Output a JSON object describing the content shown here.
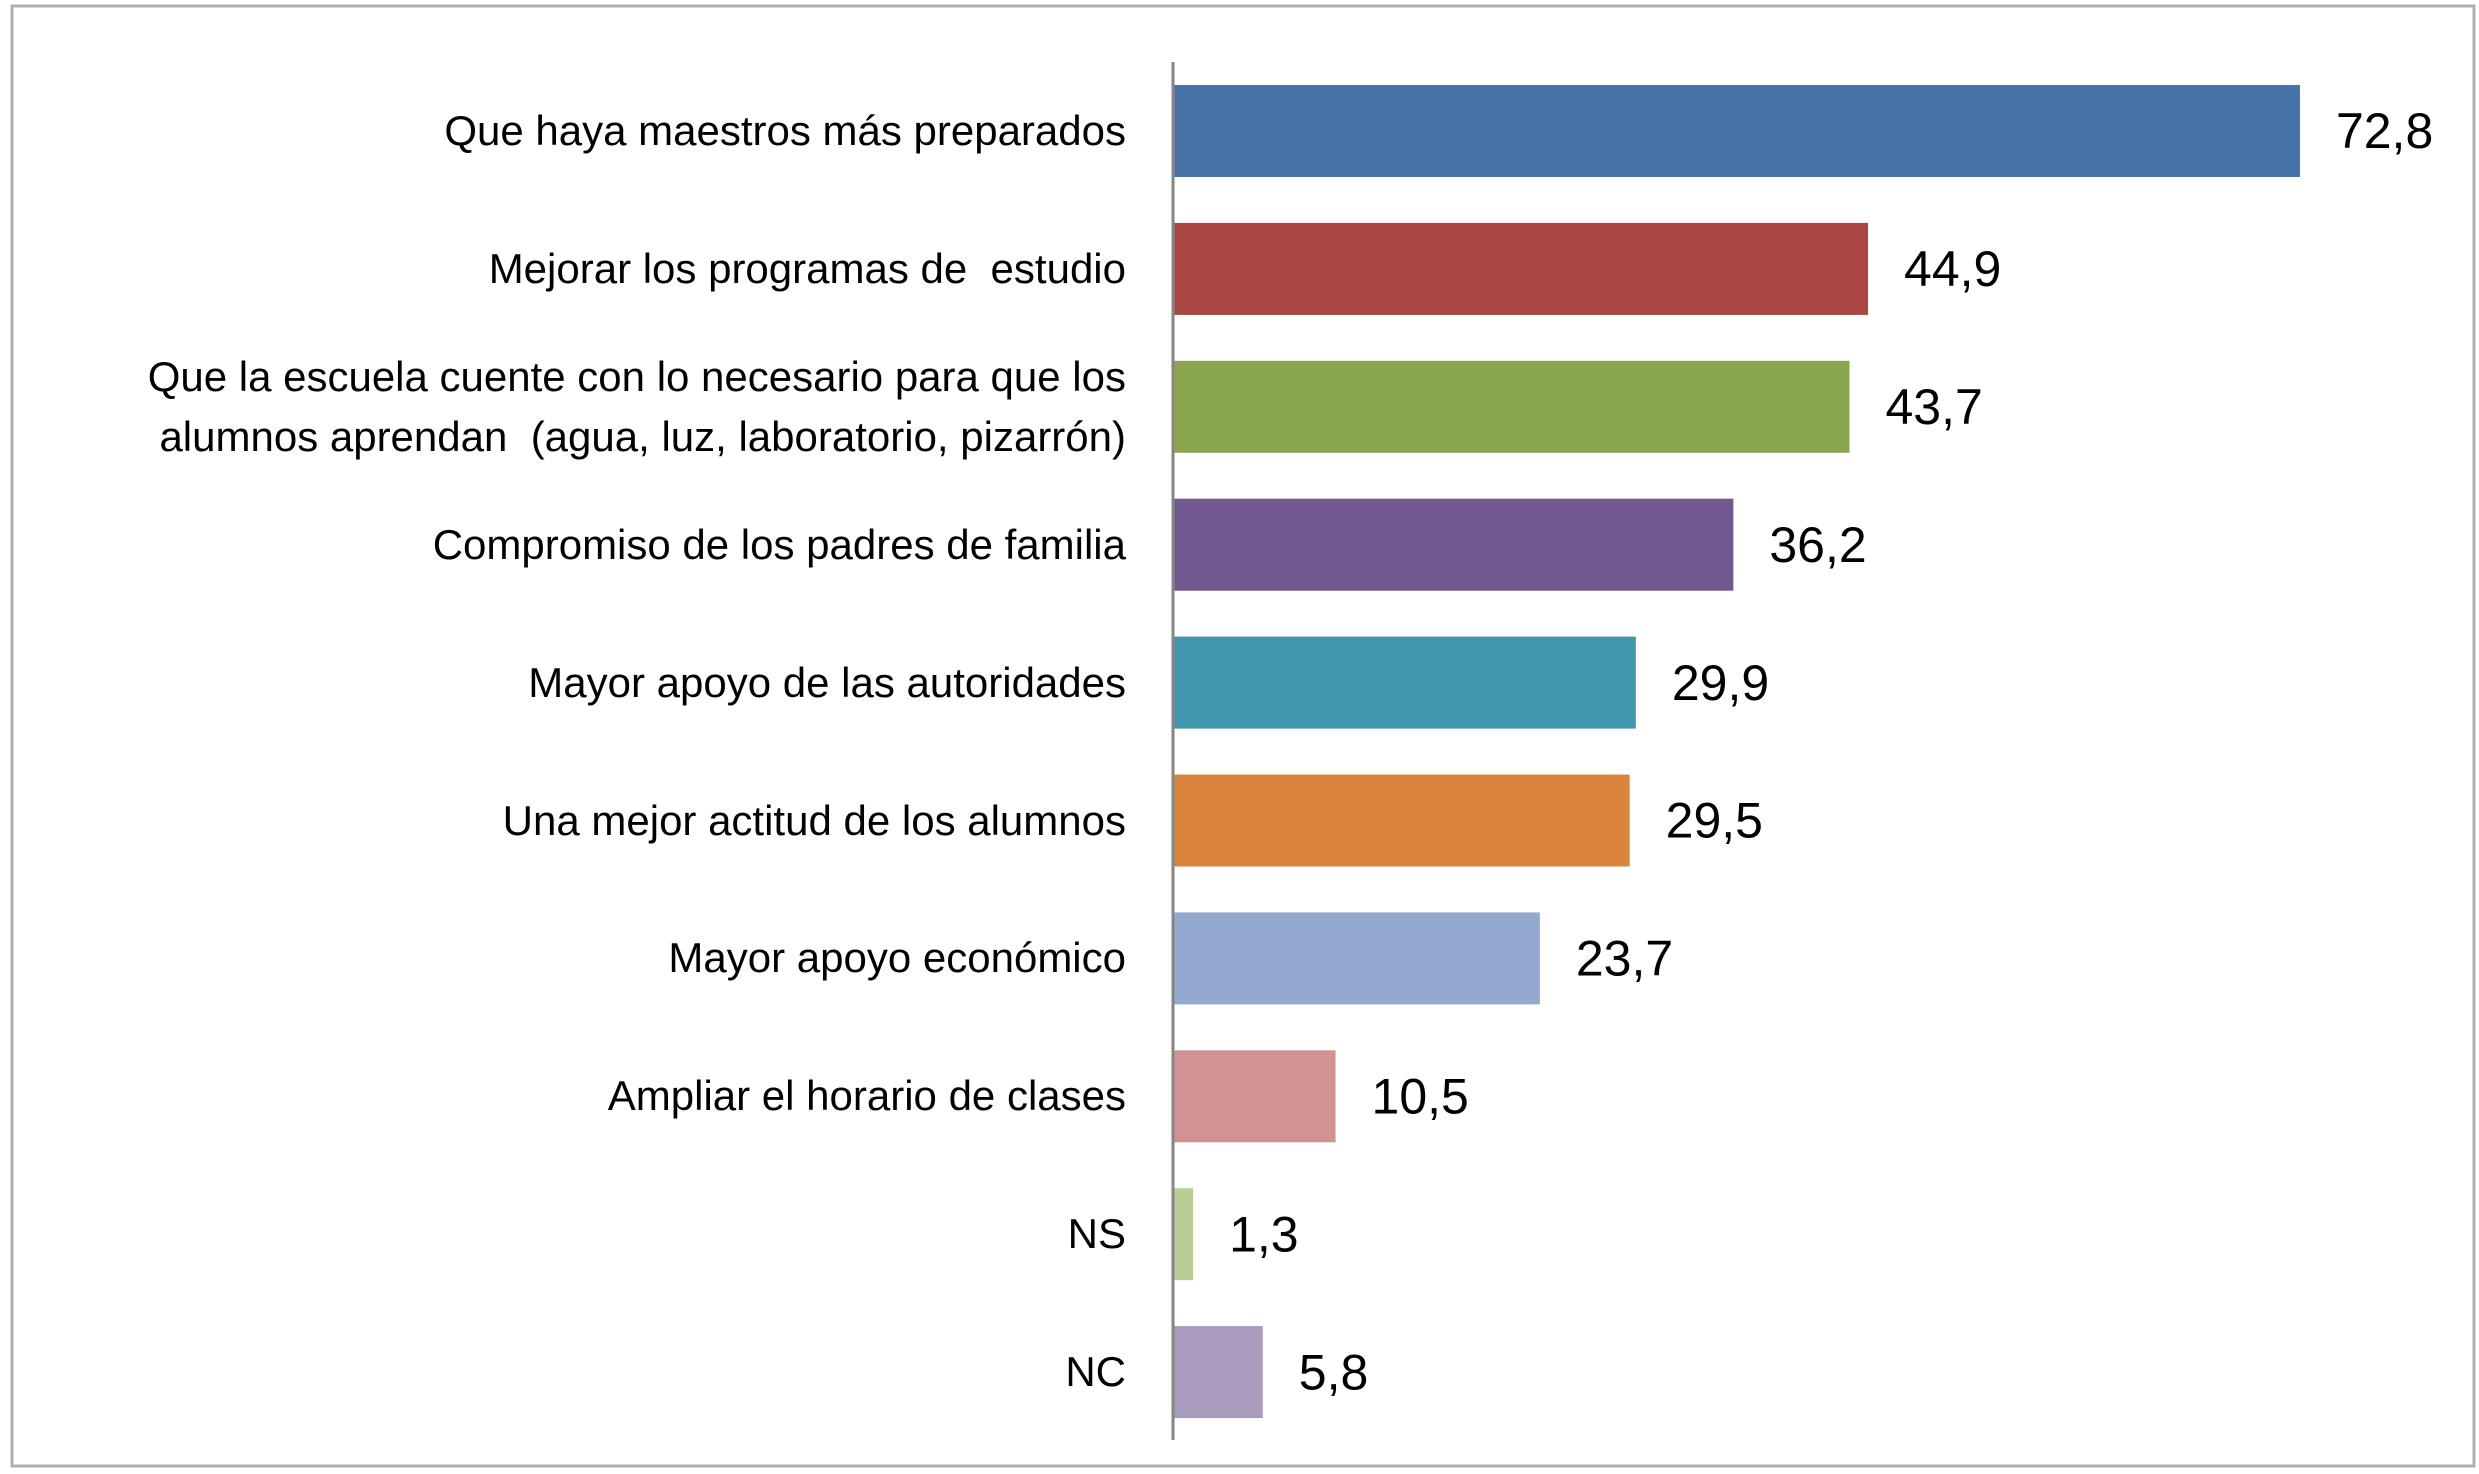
{
  "chart_data": {
    "type": "bar",
    "orientation": "horizontal",
    "categories": [
      "Que haya maestros más preparados",
      "Mejorar los programas de  estudio",
      "Que la escuela cuente con lo necesario para que los\nalumnos aprendan  (agua, luz, laboratorio, pizarrón)",
      "Compromiso de los padres de familia",
      "Mayor apoyo de las autoridades",
      "Una mejor actitud de los alumnos",
      "Mayor apoyo económico",
      "Ampliar el horario de clases",
      "NS",
      "NC"
    ],
    "values": [
      72.8,
      44.9,
      43.7,
      36.2,
      29.9,
      29.5,
      23.7,
      10.5,
      1.3,
      5.8
    ],
    "value_labels": [
      "72,8",
      "44,9",
      "43,7",
      "36,2",
      "29,9",
      "29,5",
      "23,7",
      "10,5",
      "1,3",
      "5,8"
    ],
    "colors": [
      "#4572a7",
      "#aa4643",
      "#89a54e",
      "#71588f",
      "#4198af",
      "#db843d",
      "#93a9cf",
      "#d19392",
      "#b9cd96",
      "#a99bbd"
    ]
  }
}
